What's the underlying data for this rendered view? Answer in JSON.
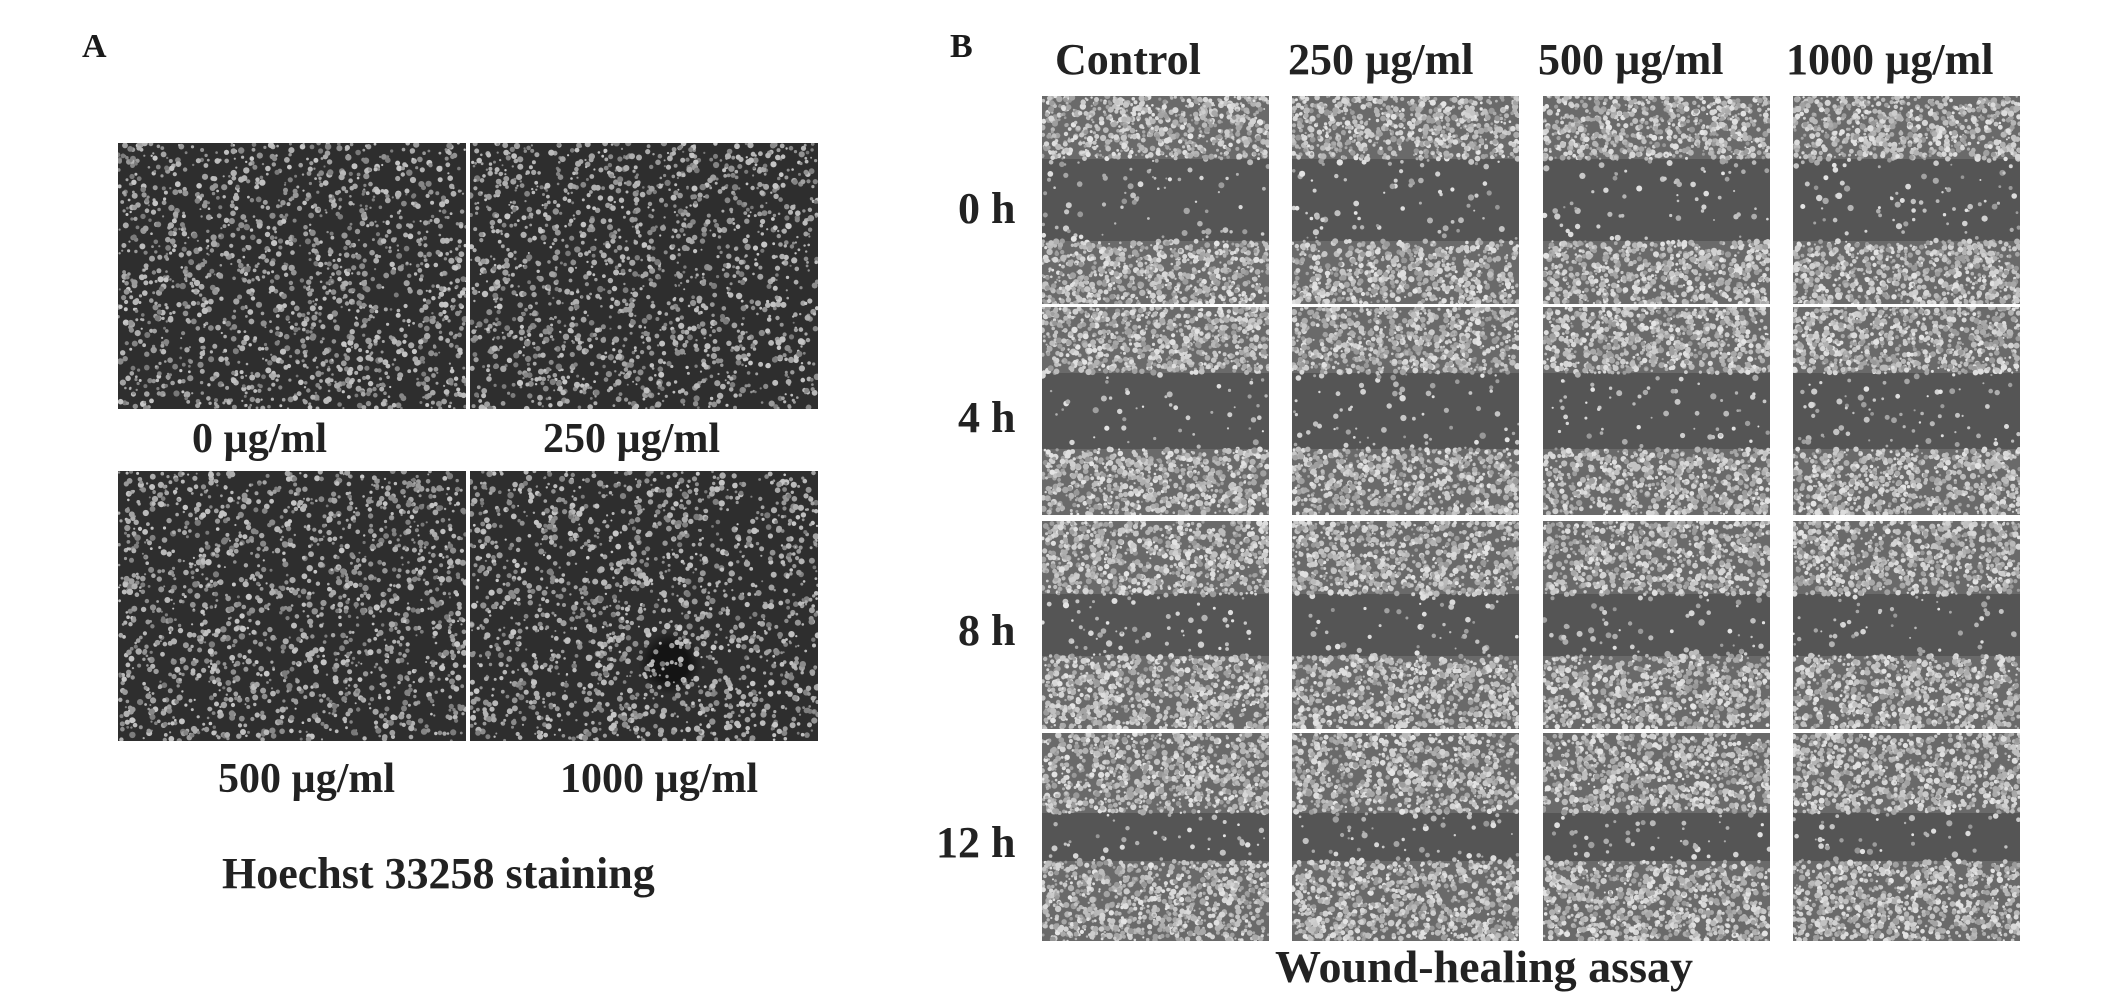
{
  "panel_a": {
    "letter": "A",
    "caption": "Hoechst 33258 staining",
    "images": [
      {
        "label": "0 µg/ml"
      },
      {
        "label": "250 µg/ml"
      },
      {
        "label": "500 µg/ml"
      },
      {
        "label": "1000 µg/ml"
      }
    ]
  },
  "panel_b": {
    "letter": "B",
    "caption": "Wound-healing assay",
    "column_headers": [
      "Control",
      "250 µg/ml",
      "500 µg/ml",
      "1000 µg/ml"
    ],
    "row_labels": [
      "0 h",
      "4 h",
      "8 h",
      "12 h"
    ]
  }
}
